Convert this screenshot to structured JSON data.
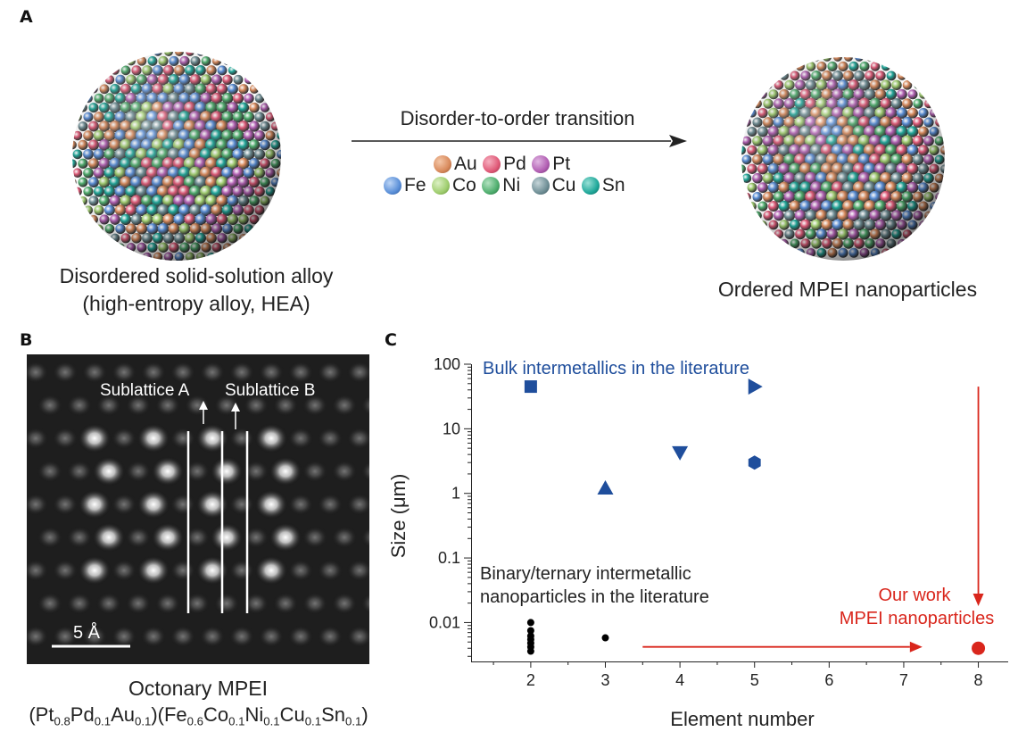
{
  "panels": {
    "a": {
      "letter": "A",
      "left_caption_line1": "Disordered solid-solution alloy",
      "left_caption_line2": "(high-entropy alloy, HEA)",
      "arrow_label": "Disorder-to-order transition",
      "right_caption": "Ordered MPEI nanoparticles",
      "legend_row1": [
        {
          "symbol": "Au",
          "color": "#d98a5c"
        },
        {
          "symbol": "Pd",
          "color": "#e05a78"
        },
        {
          "symbol": "Pt",
          "color": "#b25fb3"
        }
      ],
      "legend_row2": [
        {
          "symbol": "Fe",
          "color": "#5a8fd8"
        },
        {
          "symbol": "Co",
          "color": "#9fcd6e"
        },
        {
          "symbol": "Ni",
          "color": "#4fae6e"
        },
        {
          "symbol": "Cu",
          "color": "#6f8f96"
        },
        {
          "symbol": "Sn",
          "color": "#20a89a"
        }
      ]
    },
    "b": {
      "letter": "B",
      "sublattice_a": "Sublattice A",
      "sublattice_b": "Sublattice B",
      "scale_bar": "5 Å",
      "caption_line1": "Octonary MPEI",
      "formula": {
        "p1": "(Pt",
        "s1": "0.8",
        "p2": "Pd",
        "s2": "0.1",
        "p3": "Au",
        "s3": "0.1",
        "p4": ")(Fe",
        "s4": "0.6",
        "p5": "Co",
        "s5": "0.1",
        "p6": "Ni",
        "s6": "0.1",
        "p7": "Cu",
        "s7": "0.1",
        "p8": "Sn",
        "s8": "0.1",
        "p9": ")"
      }
    },
    "c": {
      "letter": "C",
      "bulk_label": "Bulk intermetallics in the literature",
      "nano_label_line1": "Binary/ternary intermetallic",
      "nano_label_line2": "nanoparticles in the literature",
      "our_work_line1": "Our work",
      "our_work_line2": "MPEI nanoparticles"
    }
  },
  "chart_data": {
    "type": "scatter",
    "xlabel": "Element number",
    "ylabel": "Size (μm)",
    "y_scale": "log",
    "xlim": [
      1.2,
      8.4
    ],
    "ylim": [
      0.0025,
      100
    ],
    "x_ticks": [
      2,
      3,
      4,
      5,
      6,
      7,
      8
    ],
    "x_tick_labels": [
      "2",
      "3",
      "4",
      "5",
      "6",
      "7",
      "8"
    ],
    "y_ticks": [
      0.01,
      0.1,
      1,
      10,
      100
    ],
    "y_tick_labels": [
      "0.01",
      "0.1",
      "1",
      "10",
      "100"
    ],
    "bulk_color": "#1f4e9c",
    "nano_color": "#000000",
    "work_color": "#d9261c",
    "series": [
      {
        "name": "Bulk intermetallics in the literature",
        "color": "#1f4e9c",
        "points": [
          {
            "x": 2,
            "y": 45,
            "marker": "square"
          },
          {
            "x": 3,
            "y": 1.2,
            "marker": "triangle-up"
          },
          {
            "x": 4,
            "y": 4.3,
            "marker": "triangle-down"
          },
          {
            "x": 5,
            "y": 45,
            "marker": "triangle-right"
          },
          {
            "x": 5,
            "y": 3.0,
            "marker": "hexagon"
          }
        ]
      },
      {
        "name": "Binary/ternary intermetallic nanoparticles in the literature",
        "color": "#000000",
        "points": [
          {
            "x": 2,
            "y": 0.01,
            "marker": "dot"
          },
          {
            "x": 2,
            "y": 0.0075,
            "marker": "dot"
          },
          {
            "x": 2,
            "y": 0.0062,
            "marker": "dot"
          },
          {
            "x": 2,
            "y": 0.0055,
            "marker": "dot"
          },
          {
            "x": 2,
            "y": 0.0048,
            "marker": "dot"
          },
          {
            "x": 2,
            "y": 0.0042,
            "marker": "dot"
          },
          {
            "x": 2,
            "y": 0.0036,
            "marker": "dot"
          },
          {
            "x": 3,
            "y": 0.0058,
            "marker": "dot"
          }
        ]
      },
      {
        "name": "Our work MPEI nanoparticles",
        "color": "#d9261c",
        "points": [
          {
            "x": 8,
            "y": 0.004,
            "marker": "circle"
          }
        ]
      }
    ],
    "arrows": [
      {
        "name": "horizontal-arrow",
        "from": [
          3.5,
          0.0042
        ],
        "to": [
          7.25,
          0.0042
        ],
        "color": "#d9261c"
      },
      {
        "name": "vertical-arrow",
        "from": [
          8.0,
          45
        ],
        "to": [
          8.0,
          0.018
        ],
        "color": "#d9261c"
      }
    ]
  }
}
